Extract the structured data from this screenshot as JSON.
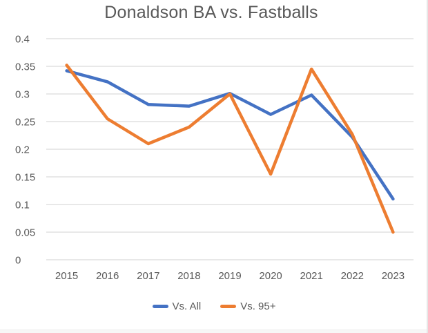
{
  "chart_data": {
    "type": "line",
    "title": "Donaldson BA vs. Fastballs",
    "categories": [
      "2015",
      "2016",
      "2017",
      "2018",
      "2019",
      "2020",
      "2021",
      "2022",
      "2023"
    ],
    "series": [
      {
        "name": "Vs. All",
        "color": "#4472C4",
        "values": [
          0.342,
          0.322,
          0.281,
          0.278,
          0.301,
          0.263,
          0.298,
          0.222,
          0.11
        ]
      },
      {
        "name": "Vs. 95+",
        "color": "#ED7D31",
        "values": [
          0.352,
          0.255,
          0.21,
          0.24,
          0.3,
          0.155,
          0.345,
          0.227,
          0.05
        ]
      }
    ],
    "xlabel": "",
    "ylabel": "",
    "ylim": [
      0,
      0.4
    ],
    "y_ticks": [
      0.4,
      0.35,
      0.3,
      0.25,
      0.2,
      0.15,
      0.1,
      0.05,
      0
    ],
    "y_tick_labels": [
      "0.4",
      "0.35",
      "0.3",
      "0.25",
      "0.2",
      "0.15",
      "0.1",
      "0.05",
      "0"
    ],
    "grid": "horizontal",
    "legend_position": "bottom",
    "text_color": "#595959",
    "gridline_color": "#D9D9D9",
    "background": "#FFFFFF"
  },
  "page": {
    "right_border_color": "#E6E6E6",
    "bottom_strip_color": "#F7F7F7"
  }
}
